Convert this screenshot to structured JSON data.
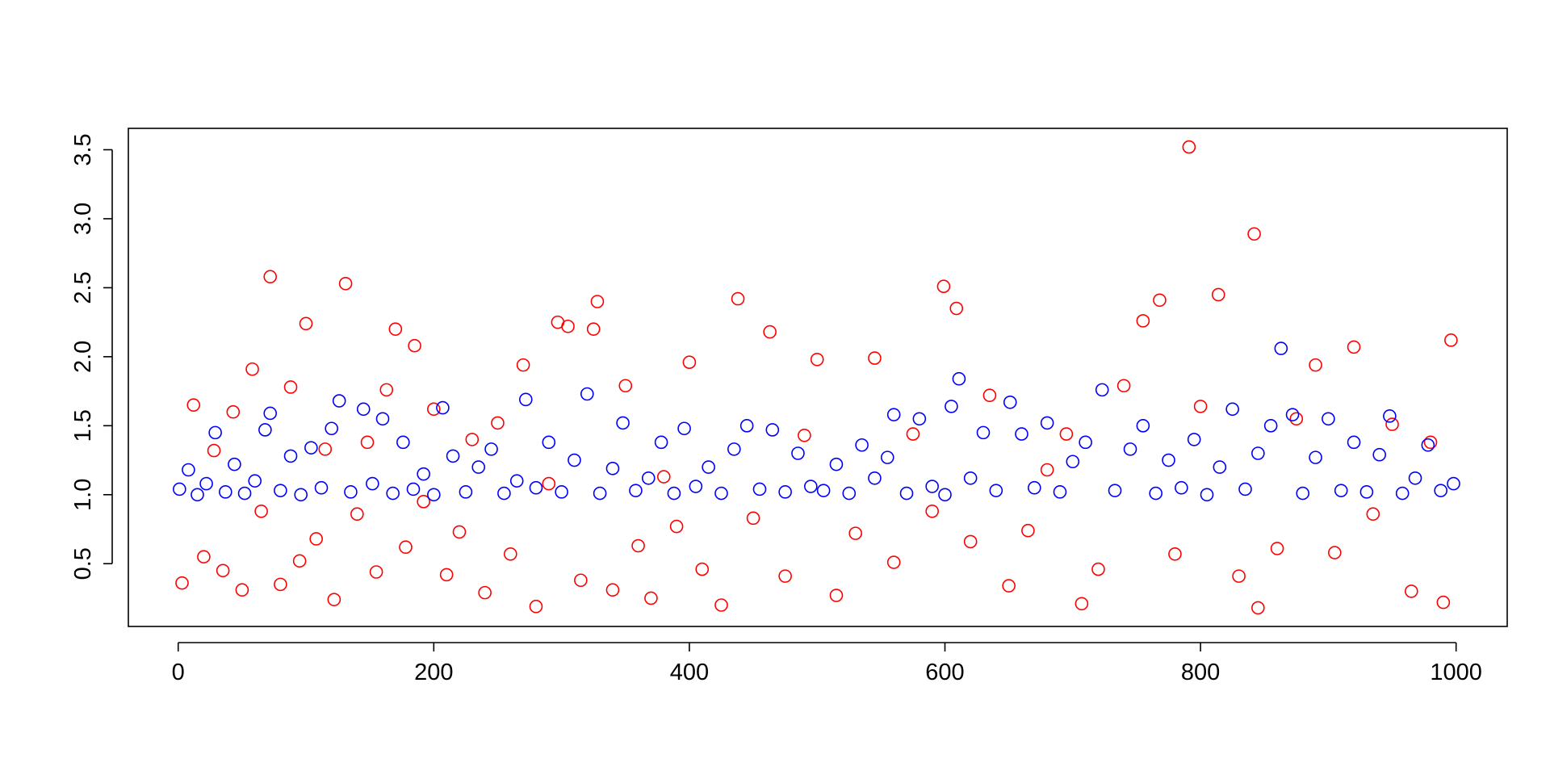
{
  "chart_data": {
    "type": "scatter",
    "xlim": [
      -39,
      1040
    ],
    "ylim": [
      0.045,
      3.655
    ],
    "xticks": [
      0,
      200,
      400,
      600,
      800,
      1000
    ],
    "yticks": [
      0.5,
      {
        "value": 1,
        "label": "1.0"
      },
      1.5,
      {
        "value": 2,
        "label": "2.0"
      },
      2.5,
      {
        "value": 3,
        "label": "3.0"
      },
      3.5
    ],
    "series": [
      {
        "color": "#ff0000",
        "x": [
          3,
          12,
          20,
          28,
          35,
          43,
          50,
          58,
          65,
          72,
          80,
          88,
          95,
          100,
          108,
          115,
          122,
          131,
          140,
          148,
          155,
          163,
          170,
          178,
          185,
          192,
          200,
          210,
          220,
          230,
          240,
          250,
          260,
          270,
          280,
          290,
          297,
          305,
          315,
          325,
          328,
          340,
          350,
          360,
          370,
          380,
          390,
          400,
          410,
          425,
          438,
          450,
          463,
          475,
          490,
          500,
          515,
          530,
          545,
          560,
          575,
          590,
          599,
          609,
          620,
          635,
          650,
          665,
          680,
          695,
          707,
          720,
          740,
          755,
          768,
          780,
          791,
          800,
          814,
          830,
          842,
          845,
          860,
          875,
          890,
          905,
          920,
          935,
          950,
          965,
          980,
          990,
          996
        ],
        "values": [
          0.36,
          1.65,
          0.55,
          1.32,
          0.45,
          1.6,
          0.31,
          1.91,
          0.88,
          2.58,
          0.35,
          1.78,
          0.52,
          2.24,
          0.68,
          1.33,
          0.24,
          2.53,
          0.86,
          1.38,
          0.44,
          1.76,
          2.2,
          0.62,
          2.08,
          0.95,
          1.62,
          0.42,
          0.73,
          1.4,
          0.29,
          1.52,
          0.57,
          1.94,
          0.19,
          1.08,
          2.25,
          2.22,
          0.38,
          2.2,
          2.4,
          0.31,
          1.79,
          0.63,
          0.25,
          1.13,
          0.77,
          1.96,
          0.46,
          0.2,
          2.42,
          0.83,
          2.18,
          0.41,
          1.43,
          1.98,
          0.27,
          0.72,
          1.99,
          0.51,
          1.44,
          0.88,
          2.51,
          2.35,
          0.66,
          1.72,
          0.34,
          0.74,
          1.18,
          1.44,
          0.21,
          0.46,
          1.79,
          2.26,
          2.41,
          0.57,
          3.52,
          1.64,
          2.45,
          0.41,
          2.89,
          0.18,
          0.61,
          1.55,
          1.94,
          0.58,
          2.07,
          0.86,
          1.51,
          0.3,
          1.38,
          0.22,
          2.12
        ]
      },
      {
        "color": "#0000ff",
        "x": [
          1,
          8,
          15,
          22,
          29,
          37,
          44,
          52,
          60,
          68,
          72,
          80,
          88,
          96,
          104,
          112,
          120,
          126,
          135,
          145,
          152,
          160,
          168,
          176,
          184,
          192,
          200,
          207,
          215,
          225,
          235,
          245,
          255,
          265,
          272,
          280,
          290,
          300,
          310,
          320,
          330,
          340,
          348,
          358,
          368,
          378,
          388,
          396,
          405,
          415,
          425,
          435,
          445,
          455,
          465,
          475,
          485,
          495,
          505,
          515,
          525,
          535,
          545,
          555,
          560,
          570,
          580,
          590,
          600,
          605,
          611,
          620,
          630,
          640,
          651,
          660,
          670,
          680,
          690,
          700,
          710,
          723,
          733,
          745,
          755,
          765,
          775,
          785,
          795,
          805,
          815,
          825,
          835,
          845,
          855,
          863,
          872,
          880,
          890,
          900,
          910,
          920,
          930,
          940,
          948,
          958,
          968,
          978,
          988,
          998
        ],
        "values": [
          1.04,
          1.18,
          1.0,
          1.08,
          1.45,
          1.02,
          1.22,
          1.01,
          1.1,
          1.47,
          1.59,
          1.03,
          1.28,
          1.0,
          1.34,
          1.05,
          1.48,
          1.68,
          1.02,
          1.62,
          1.08,
          1.55,
          1.01,
          1.38,
          1.04,
          1.15,
          1.0,
          1.63,
          1.28,
          1.02,
          1.2,
          1.33,
          1.01,
          1.1,
          1.69,
          1.05,
          1.38,
          1.02,
          1.25,
          1.73,
          1.01,
          1.19,
          1.52,
          1.03,
          1.12,
          1.38,
          1.01,
          1.48,
          1.06,
          1.2,
          1.01,
          1.33,
          1.5,
          1.04,
          1.47,
          1.02,
          1.3,
          1.06,
          1.03,
          1.22,
          1.01,
          1.36,
          1.12,
          1.27,
          1.58,
          1.01,
          1.55,
          1.06,
          1.0,
          1.64,
          1.84,
          1.12,
          1.45,
          1.03,
          1.67,
          1.44,
          1.05,
          1.52,
          1.02,
          1.24,
          1.38,
          1.76,
          1.03,
          1.33,
          1.5,
          1.01,
          1.25,
          1.05,
          1.4,
          1.0,
          1.2,
          1.62,
          1.04,
          1.3,
          1.5,
          2.06,
          1.58,
          1.01,
          1.27,
          1.55,
          1.03,
          1.38,
          1.02,
          1.29,
          1.57,
          1.01,
          1.12,
          1.36,
          1.03,
          1.08
        ]
      }
    ]
  }
}
